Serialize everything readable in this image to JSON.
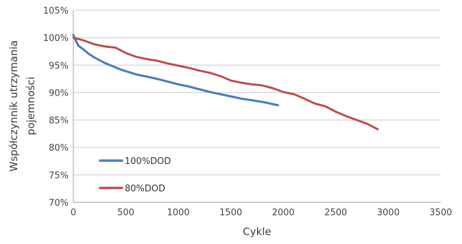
{
  "chart_data": {
    "type": "line",
    "xlabel": "Cykle",
    "ylabel_line1": "Współczynnik utrzymania",
    "ylabel_line2": "pojemności",
    "xlim": [
      0,
      3500
    ],
    "ylim": [
      70,
      105
    ],
    "x_ticks": [
      "0",
      "500",
      "1000",
      "1500",
      "2000",
      "2500",
      "3000",
      "3500"
    ],
    "y_ticks": [
      "70%",
      "75%",
      "80%",
      "85%",
      "90%",
      "95%",
      "100%",
      "105%"
    ],
    "grid": "horizontal",
    "legend_position": "bottom-left",
    "series": [
      {
        "name": "100%DOD",
        "color": "#4a7ebb",
        "x": [
          0,
          20,
          50,
          80,
          100,
          150,
          200,
          250,
          300,
          350,
          400,
          450,
          500,
          550,
          600,
          650,
          700,
          800,
          900,
          1000,
          1100,
          1200,
          1300,
          1400,
          1500,
          1600,
          1700,
          1800,
          1900,
          1950
        ],
        "y": [
          100.5,
          99.6,
          98.5,
          98.1,
          97.8,
          97.0,
          96.4,
          95.9,
          95.4,
          95.0,
          94.6,
          94.2,
          93.9,
          93.6,
          93.3,
          93.1,
          92.9,
          92.5,
          92.0,
          91.5,
          91.1,
          90.6,
          90.1,
          89.7,
          89.3,
          88.9,
          88.6,
          88.3,
          87.9,
          87.7
        ]
      },
      {
        "name": "80%DOD",
        "color": "#be4b48",
        "x": [
          0,
          100,
          200,
          300,
          400,
          500,
          600,
          700,
          800,
          900,
          1000,
          1100,
          1200,
          1300,
          1400,
          1500,
          1600,
          1700,
          1800,
          1900,
          2000,
          2100,
          2200,
          2300,
          2400,
          2500,
          2600,
          2700,
          2800,
          2900
        ],
        "y": [
          100.0,
          99.5,
          98.8,
          98.4,
          98.2,
          97.2,
          96.5,
          96.1,
          95.8,
          95.3,
          94.9,
          94.5,
          94.0,
          93.6,
          93.0,
          92.2,
          91.8,
          91.5,
          91.3,
          90.8,
          90.1,
          89.7,
          88.9,
          88.0,
          87.5,
          86.5,
          85.7,
          85.0,
          84.3,
          83.3
        ]
      }
    ]
  }
}
